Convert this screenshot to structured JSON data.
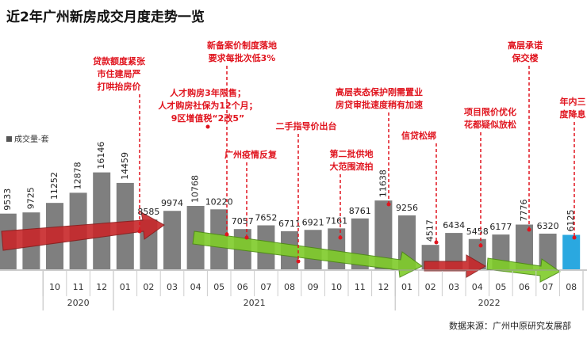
{
  "chart_data": {
    "type": "bar",
    "title": "近2年广州新房成交月度走势一览",
    "series": [
      {
        "name": "成交量-套",
        "color": "#7f7f7f",
        "highlight_color": "#2aa8e0",
        "values": [
          9533,
          9725,
          11252,
          12878,
          16146,
          14459,
          8585,
          9974,
          10768,
          10220,
          7057,
          7652,
          6711,
          6921,
          7161,
          8761,
          11638,
          9256,
          4517,
          6434,
          5458,
          6177,
          7776,
          6320,
          6125
        ]
      }
    ],
    "categories": [
      null,
      null,
      "10",
      "11",
      "12",
      "01",
      "02",
      "03",
      "04",
      "05",
      "06",
      "07",
      "08",
      "09",
      "10",
      "11",
      "12",
      "01",
      "02",
      "03",
      "04",
      "05",
      "06",
      "07",
      "08"
    ],
    "years": [
      "2020",
      "2021",
      "2022"
    ],
    "ylim": [
      600,
      17500
    ],
    "annotations": [
      {
        "lines": [
          "贷款额度紧张",
          "市住建局严",
          "打哄抬房价"
        ]
      },
      {
        "lines": [
          "新备案价制度落地",
          "要求每批次低3%"
        ]
      },
      {
        "lines": [
          "人才购房3年限售；",
          "人才购房社保为12个月；",
          "9区增值税“2改5”"
        ]
      },
      {
        "lines": [
          "广州疫情反复"
        ]
      },
      {
        "lines": [
          "二手指导价出台"
        ]
      },
      {
        "lines": [
          "高层表态保护刚需置业",
          "房贷审批速度稍有加速"
        ]
      },
      {
        "lines": [
          "第二批供地",
          "大范围流拍"
        ]
      },
      {
        "lines": [
          "信贷松绑"
        ]
      },
      {
        "lines": [
          "项目限价优化",
          "花都疑似放松"
        ]
      },
      {
        "lines": [
          "高层承诺",
          "保交楼"
        ]
      },
      {
        "lines": [
          "年内三",
          "度降息"
        ]
      }
    ],
    "source": "数据来源：广州中原研究发展部"
  }
}
